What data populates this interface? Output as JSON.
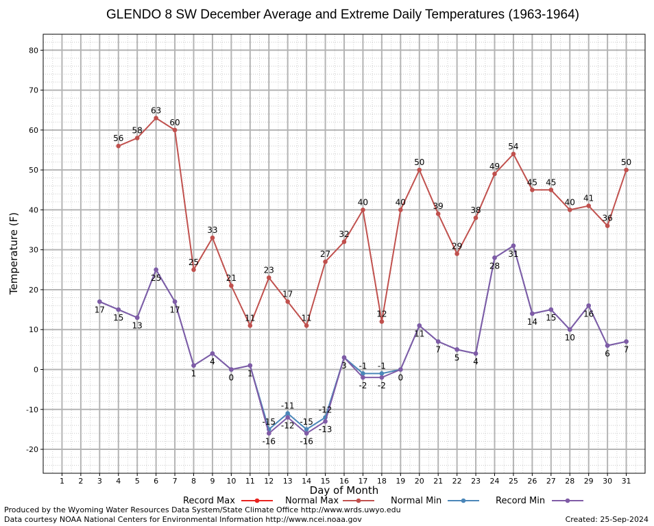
{
  "chart_data": {
    "type": "line",
    "title": "GLENDO 8 SW December Average and Extreme Daily Temperatures (1963-1964)",
    "xlabel": "Day of Month",
    "ylabel": "Temperature (F)",
    "xlim": [
      0,
      32
    ],
    "ylim": [
      -26,
      84
    ],
    "yticks": [
      -20,
      -10,
      0,
      10,
      20,
      30,
      40,
      50,
      60,
      70,
      80
    ],
    "x": [
      1,
      2,
      3,
      4,
      5,
      6,
      7,
      8,
      9,
      10,
      11,
      12,
      13,
      14,
      15,
      16,
      17,
      18,
      19,
      20,
      21,
      22,
      23,
      24,
      25,
      26,
      27,
      28,
      29,
      30,
      31
    ],
    "grid": true,
    "legend_position": "bottom",
    "colors": {
      "record_max": "#e8221e",
      "normal_max": "#c0504d",
      "normal_min": "#4a86b8",
      "record_min": "#7f5ba6"
    },
    "series": [
      {
        "name": "Record Max",
        "values": [
          null,
          null,
          null,
          null,
          null,
          null,
          null,
          null,
          null,
          null,
          null,
          null,
          null,
          null,
          null,
          null,
          null,
          null,
          null,
          null,
          null,
          null,
          null,
          null,
          null,
          null,
          null,
          null,
          null,
          null,
          null
        ]
      },
      {
        "name": "Normal Max",
        "values": [
          null,
          null,
          null,
          56,
          58,
          63,
          60,
          25,
          33,
          21,
          11,
          23,
          17,
          11,
          27,
          32,
          40,
          12,
          40,
          50,
          39,
          29,
          38,
          49,
          54,
          45,
          45,
          40,
          41,
          36,
          50
        ],
        "labels": [
          null,
          null,
          null,
          "56",
          "58",
          "63",
          "60",
          "25",
          "33",
          "21",
          "11",
          "23",
          "17",
          "11",
          "27",
          "32",
          "40",
          "12",
          "40",
          "50",
          "39",
          "29",
          "38",
          "49",
          "54",
          "45",
          "45",
          "40",
          "41",
          "36",
          "50"
        ]
      },
      {
        "name": "Normal Min",
        "values": [
          null,
          null,
          17,
          15,
          13,
          25,
          17,
          1,
          4,
          0,
          1,
          -15,
          -11,
          -15,
          -12,
          3,
          -1,
          -1,
          0,
          11,
          7,
          5,
          4,
          28,
          31,
          14,
          15,
          10,
          16,
          6,
          7
        ],
        "labels": [
          null,
          null,
          null,
          null,
          null,
          null,
          null,
          null,
          null,
          null,
          null,
          "-15",
          "-11",
          "-15",
          "-12",
          null,
          "-1",
          "-1",
          null,
          null,
          null,
          null,
          null,
          null,
          null,
          null,
          null,
          null,
          null,
          null,
          null
        ]
      },
      {
        "name": "Record Min",
        "values": [
          null,
          null,
          17,
          15,
          13,
          25,
          17,
          1,
          4,
          0,
          1,
          -16,
          -12,
          -16,
          -13,
          3,
          -2,
          -2,
          0,
          11,
          7,
          5,
          4,
          28,
          31,
          14,
          15,
          10,
          16,
          6,
          7
        ],
        "labels": [
          null,
          null,
          "17",
          "15",
          "13",
          "25",
          "17",
          "1",
          "4",
          "0",
          "1",
          "-16",
          "-12",
          "-16",
          "-13",
          "3",
          "-2",
          "-2",
          "0",
          "11",
          "7",
          "5",
          "4",
          "28",
          "31",
          "14",
          "15",
          "10",
          "16",
          "6",
          "7"
        ]
      }
    ]
  },
  "footer": {
    "line1": "Produced by the Wyoming Water Resources Data System/State Climate Office http://www.wrds.uwyo.edu",
    "line2": "Data courtesy NOAA National Centers for Environmental Information http://www.ncei.noaa.gov",
    "created": "Created:  25-Sep-2024"
  }
}
